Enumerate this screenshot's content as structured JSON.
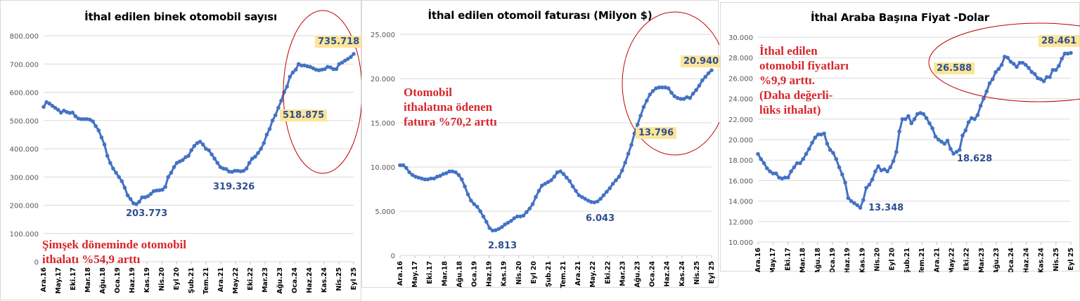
{
  "chart_data": [
    {
      "type": "line",
      "title": "İthal edilen binek otomobil sayısı",
      "xlabel": "",
      "ylabel": "",
      "ylim": [
        0,
        800000
      ],
      "yticks": [
        "0",
        "100.000",
        "200.000",
        "300.000",
        "400.000",
        "500.000",
        "600.000",
        "700.000",
        "800.000"
      ],
      "x_tick_labels": [
        "Ara.16",
        "May.17",
        "Eki.17",
        "Mar.18",
        "Ağu.18",
        "Oca.19",
        "Haz.19",
        "Kas.19",
        "Nis.20",
        "Eyl 20",
        "Şub.21",
        "Tem.21",
        "Ara.21",
        "May.22",
        "Eki.22",
        "Mar.23",
        "Ağu.23",
        "Oca.24",
        "Haz.24",
        "Kas.24",
        "Nis.25",
        "Eyl 25"
      ],
      "grid": true,
      "legend": "none",
      "series": [
        {
          "name": "İthal edilen binek otomobil sayısı",
          "color": "#4472c4",
          "values": [
            548000,
            565000,
            560000,
            552000,
            545000,
            538000,
            528000,
            535000,
            530000,
            527000,
            528000,
            515000,
            507000,
            505000,
            505000,
            505000,
            503000,
            497000,
            480000,
            465000,
            440000,
            415000,
            375000,
            350000,
            330000,
            315000,
            300000,
            285000,
            262000,
            235000,
            222000,
            207000,
            203773,
            212000,
            228000,
            228000,
            232000,
            240000,
            250000,
            252000,
            253000,
            255000,
            265000,
            300000,
            315000,
            335000,
            350000,
            355000,
            360000,
            370000,
            375000,
            395000,
            410000,
            420000,
            425000,
            415000,
            400000,
            395000,
            380000,
            365000,
            350000,
            335000,
            330000,
            328000,
            319326,
            318000,
            322000,
            322000,
            320000,
            322000,
            330000,
            350000,
            365000,
            372000,
            385000,
            400000,
            420000,
            450000,
            470000,
            500000,
            518875,
            545000,
            570000,
            600000,
            620000,
            655000,
            670000,
            680000,
            700000,
            695000,
            695000,
            692000,
            690000,
            685000,
            680000,
            678000,
            680000,
            682000,
            690000,
            688000,
            682000,
            682000,
            700000,
            705000,
            712000,
            718000,
            725000,
            735718
          ],
          "annotations": [
            {
              "label": "203.773",
              "value": 203773,
              "at": "Eyl.19"
            },
            {
              "label": "319.326",
              "value": 319326,
              "at": "Haz.22"
            },
            {
              "label": "518.875",
              "value": 518875,
              "at": "Haz.23",
              "highlight": true
            },
            {
              "label": "735.718",
              "value": 735718,
              "at": "Eyl 25",
              "highlight": true
            }
          ]
        }
      ],
      "text_annotation": "Şimşek döneminde otomobil\nithalatı %54,9 arttı"
    },
    {
      "type": "line",
      "title": "İthal edilen otomoil faturası (Milyon $)",
      "xlabel": "",
      "ylabel": "",
      "ylim": [
        0,
        25000
      ],
      "yticks": [
        "0",
        "5.000",
        "10.000",
        "15.000",
        "20.000",
        "25.000"
      ],
      "x_tick_labels": [
        "Ara.16",
        "May.17",
        "Eki.17",
        "Mar.18",
        "Ağu.18",
        "Oca.19",
        "Haz.19",
        "Kas.19",
        "Nis.20",
        "Eyl 20",
        "Şub.21",
        "Tem.21",
        "Ara.21",
        "May.22",
        "Eki.22",
        "Mar.23",
        "Ağu.23",
        "Oca.24",
        "Haz.24",
        "Kas.24",
        "Nis.25",
        "Eyl 25"
      ],
      "grid": true,
      "legend": "none",
      "series": [
        {
          "name": "İthal edilen otomobil faturası",
          "color": "#4472c4",
          "values": [
            10200,
            10200,
            9900,
            9400,
            9100,
            8900,
            8800,
            8700,
            8600,
            8600,
            8700,
            8700,
            8900,
            9000,
            9200,
            9300,
            9500,
            9500,
            9400,
            9100,
            8600,
            7800,
            6900,
            6200,
            5800,
            5500,
            5000,
            4400,
            3800,
            3100,
            2813,
            2850,
            3000,
            3200,
            3500,
            3700,
            3900,
            4200,
            4400,
            4400,
            4500,
            4900,
            5300,
            5800,
            6600,
            7300,
            7900,
            8100,
            8300,
            8500,
            8900,
            9400,
            9500,
            9200,
            8800,
            8400,
            7800,
            7300,
            6800,
            6600,
            6400,
            6200,
            6043,
            6000,
            6100,
            6400,
            6800,
            7200,
            7600,
            8100,
            8500,
            8900,
            9600,
            10500,
            11500,
            12500,
            13796,
            14800,
            15800,
            16800,
            17500,
            18200,
            18600,
            18900,
            19000,
            19000,
            19000,
            18900,
            18400,
            18000,
            17800,
            17700,
            17700,
            17900,
            17800,
            18300,
            18700,
            19200,
            19800,
            20200,
            20600,
            20940
          ],
          "annotations": [
            {
              "label": "2.813",
              "value": 2813,
              "at": "Eyl.19"
            },
            {
              "label": "6.043",
              "value": 6043,
              "at": "Haz.22"
            },
            {
              "label": "13.796",
              "value": 13796,
              "at": "Haz.23",
              "highlight": true
            },
            {
              "label": "20.940",
              "value": 20940,
              "at": "Eyl 25",
              "highlight": true
            }
          ]
        }
      ],
      "text_annotation": "Otomobil\nithalatına ödenen\nfatura %70,2 arttı"
    },
    {
      "type": "line",
      "title": "İthal Araba Başına Fiyat -Dolar",
      "xlabel": "",
      "ylabel": "",
      "ylim": [
        10000,
        30000
      ],
      "yticks": [
        "10.000",
        "12.000",
        "14.000",
        "16.000",
        "18.000",
        "20.000",
        "22.000",
        "24.000",
        "26.000",
        "28.000",
        "30.000"
      ],
      "x_tick_labels": [
        "Ara.16",
        "May.17",
        "Eki.17",
        "Mar.18",
        "Ağu.18",
        "Oca.19",
        "Haz.19",
        "Kas.19",
        "Nis.20",
        "Eyl 20",
        "Şub.21",
        "Tem.21",
        "Ara.21",
        "May.22",
        "Eki.22",
        "Mar.23",
        "Ağu.23",
        "Oca.24",
        "Haz.24",
        "Kas.24",
        "Nis.25",
        "Eyl 25"
      ],
      "grid": true,
      "legend": "none",
      "series": [
        {
          "name": "İthal araba başına fiyat",
          "color": "#4472c4",
          "values": [
            18600,
            18100,
            17700,
            17200,
            16900,
            16700,
            16700,
            16300,
            16200,
            16300,
            16300,
            16900,
            17300,
            17700,
            17700,
            18100,
            18600,
            19100,
            19700,
            20200,
            20500,
            20500,
            20600,
            19600,
            19000,
            18700,
            18100,
            17300,
            16600,
            15800,
            14300,
            14000,
            13800,
            13600,
            13348,
            14100,
            15300,
            15600,
            16100,
            16900,
            17400,
            17000,
            17100,
            16900,
            17300,
            17900,
            18800,
            20800,
            22000,
            22000,
            22300,
            21600,
            22000,
            22500,
            22600,
            22500,
            22100,
            21600,
            21100,
            20300,
            20000,
            19800,
            19600,
            19900,
            19100,
            18628,
            18800,
            19000,
            20400,
            20900,
            21700,
            22100,
            22000,
            22400,
            23300,
            24000,
            24700,
            25500,
            25900,
            26588,
            26900,
            27300,
            28100,
            28000,
            27600,
            27400,
            27100,
            27500,
            27500,
            27300,
            27000,
            26600,
            26400,
            26000,
            25900,
            25700,
            26100,
            26100,
            26800,
            26800,
            27200,
            27900,
            28400,
            28400,
            28461
          ],
          "annotations": [
            {
              "label": "13.348",
              "value": 13348,
              "at": "Eyl.19"
            },
            {
              "label": "18.628",
              "value": 18628,
              "at": "Haz.22"
            },
            {
              "label": "26.588",
              "value": 26588,
              "at": "Haz.23",
              "highlight": true
            },
            {
              "label": "28.461",
              "value": 28461,
              "at": "Eyl 25",
              "highlight": true
            }
          ]
        }
      ],
      "text_annotation": "İthal edilen\notomobil fiyatları\n%9,9 arttı.\n(Daha değerli-\nlüks ithalat)"
    }
  ],
  "panels": [
    {
      "title": "İthal edilen binek otomobil sayısı",
      "note": "Şimşek döneminde otomobil\nithalatı %54,9 arttı",
      "labels": [
        "203.773",
        "319.326",
        "518.875",
        "735.718"
      ]
    },
    {
      "title": "İthal edilen otomoil faturası (Milyon $)",
      "note": "Otomobil\nithalatına ödenen\nfatura %70,2 arttı",
      "labels": [
        "2.813",
        "6.043",
        "13.796",
        "20.940"
      ]
    },
    {
      "title": "İthal Araba Başına Fiyat -Dolar",
      "note": "İthal edilen\notomobil fiyatları\n%9,9 arttı.\n(Daha değerli-\nlüks ithalat)",
      "labels": [
        "13.348",
        "18.628",
        "26.588",
        "28.461"
      ]
    }
  ],
  "colors": {
    "line": "#4472c4",
    "annotation_text": "#d7262b",
    "highlight_bg": "#fde59a",
    "label_text": "#2f4f8f",
    "ellipse": "#c00000",
    "grid": "#d9d9d9"
  }
}
